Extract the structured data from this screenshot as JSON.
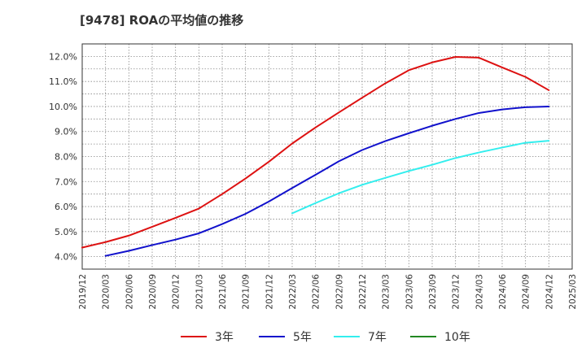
{
  "chart_data": {
    "type": "line",
    "title": "[9478]  ROAの平均値の推移",
    "x": [
      "2019/12",
      "2020/03",
      "2020/06",
      "2020/09",
      "2020/12",
      "2021/03",
      "2021/06",
      "2021/09",
      "2021/12",
      "2022/03",
      "2022/06",
      "2022/09",
      "2022/12",
      "2023/03",
      "2023/06",
      "2023/09",
      "2023/12",
      "2024/03",
      "2024/06",
      "2024/09",
      "2024/12",
      "2025/03"
    ],
    "ylim": [
      3.5,
      12.5
    ],
    "y_ticks": [
      "4.0%",
      "5.0%",
      "6.0%",
      "7.0%",
      "8.0%",
      "9.0%",
      "10.0%",
      "11.0%",
      "12.0%"
    ],
    "y_tick_values": [
      4,
      5,
      6,
      7,
      8,
      9,
      10,
      11,
      12
    ],
    "grid": true,
    "legend_position": "bottom",
    "series": [
      {
        "name": "3年",
        "color": "#dd1111",
        "values": [
          4.36,
          4.58,
          4.84,
          5.19,
          5.55,
          5.92,
          6.5,
          7.12,
          7.79,
          8.52,
          9.16,
          9.76,
          10.35,
          10.93,
          11.45,
          11.76,
          11.98,
          11.95,
          11.56,
          11.18,
          10.65,
          null
        ]
      },
      {
        "name": "5年",
        "color": "#1111cc",
        "values": [
          null,
          4.03,
          4.23,
          4.46,
          4.68,
          4.93,
          5.3,
          5.71,
          6.2,
          6.74,
          7.27,
          7.81,
          8.26,
          8.62,
          8.93,
          9.23,
          9.5,
          9.74,
          9.88,
          9.97,
          10.0,
          null
        ]
      },
      {
        "name": "7年",
        "color": "#33eeee",
        "values": [
          null,
          null,
          null,
          null,
          null,
          null,
          null,
          null,
          null,
          5.73,
          6.14,
          6.53,
          6.87,
          7.15,
          7.42,
          7.67,
          7.94,
          8.16,
          8.36,
          8.55,
          8.63,
          null
        ]
      },
      {
        "name": "10年",
        "color": "#228822",
        "values": [
          null,
          null,
          null,
          null,
          null,
          null,
          null,
          null,
          null,
          null,
          null,
          null,
          null,
          null,
          null,
          null,
          null,
          null,
          null,
          null,
          null,
          null
        ]
      }
    ]
  }
}
